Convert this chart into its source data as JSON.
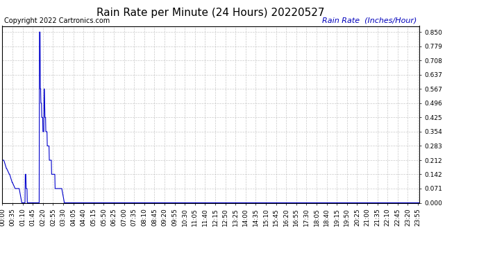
{
  "title": "Rain Rate per Minute (24 Hours) 20220527",
  "title_color": "#000000",
  "title_fontsize": 11,
  "copyright_text": "Copyright 2022 Cartronics.com",
  "copyright_color": "#000000",
  "copyright_fontsize": 7,
  "legend_text": "Rain Rate  (Inches/Hour)",
  "legend_color": "#0000bb",
  "legend_fontsize": 8,
  "line_color": "#0000cc",
  "line_width": 0.8,
  "background_color": "#ffffff",
  "plot_bg_color": "#ffffff",
  "grid_color": "#bbbbbb",
  "yticks": [
    0.0,
    0.071,
    0.142,
    0.212,
    0.283,
    0.354,
    0.425,
    0.496,
    0.567,
    0.637,
    0.708,
    0.779,
    0.85
  ],
  "ylim_max": 0.88,
  "total_minutes": 1440,
  "x_tick_interval": 35,
  "tick_fontsize": 6.5,
  "tick_color": "#000000",
  "border_color": "#000000"
}
